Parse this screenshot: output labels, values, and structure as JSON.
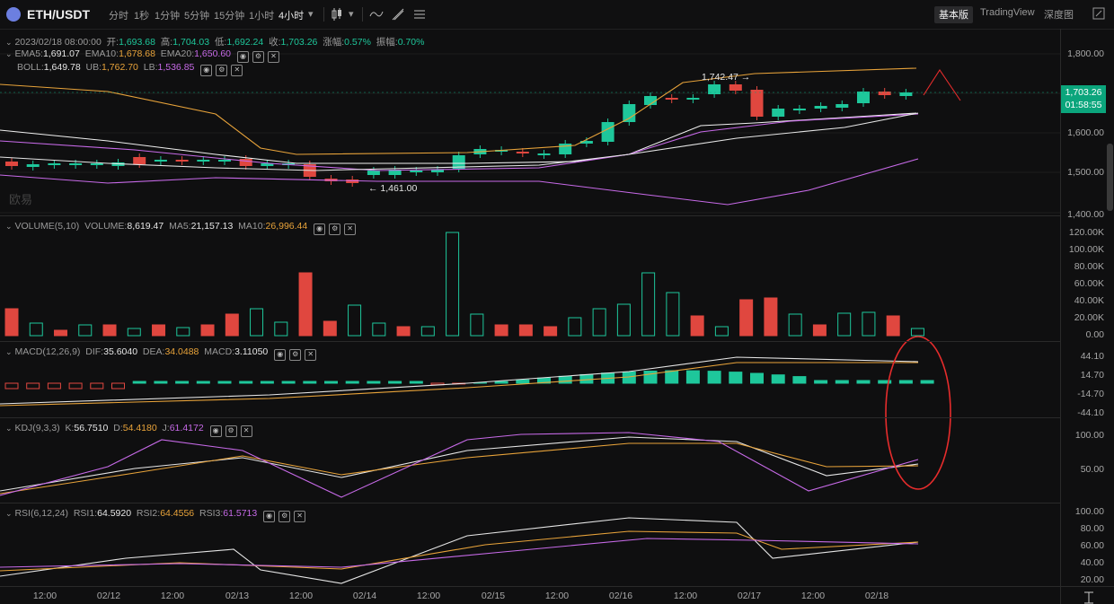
{
  "toolbar": {
    "symbol": "ETH/USDT",
    "intervals": [
      "分时",
      "1秒",
      "1分钟",
      "5分钟",
      "15分钟",
      "1小时",
      "4小时"
    ],
    "active_interval": "4小时",
    "views": [
      "基本版",
      "TradingView",
      "深度图"
    ],
    "active_view": "基本版"
  },
  "ohlc": {
    "date": "2023/02/18 08:00:00",
    "open_label": "开:",
    "open": "1,693.68",
    "high_label": "高:",
    "high": "1,704.03",
    "low_label": "低:",
    "low": "1,692.24",
    "close_label": "收:",
    "close": "1,703.26",
    "chg_label": "涨幅:",
    "chg": "0.57%",
    "amp_label": "振幅:",
    "amp": "0.70%"
  },
  "ema": {
    "ema5_label": "EMA5:",
    "ema5": "1,691.07",
    "ema10_label": "EMA10:",
    "ema10": "1,678.68",
    "ema20_label": "EMA20:",
    "ema20": "1,650.60"
  },
  "boll": {
    "label": "BOLL:",
    "value": "1,649.78",
    "ub_label": "UB:",
    "ub": "1,762.70",
    "lb_label": "LB:",
    "lb": "1,536.85"
  },
  "volume": {
    "label": "VOLUME(5,10)",
    "vol_label": "VOLUME:",
    "vol": "8,619.47",
    "ma5_label": "MA5:",
    "ma5": "21,157.13",
    "ma10_label": "MA10:",
    "ma10": "26,996.44"
  },
  "macd": {
    "label": "MACD(12,26,9)",
    "dif_label": "DIF:",
    "dif": "35.6040",
    "dea_label": "DEA:",
    "dea": "34.0488",
    "macd_label": "MACD:",
    "macd": "3.11050"
  },
  "kdj": {
    "label": "KDJ(9,3,3)",
    "k_label": "K:",
    "k": "56.7510",
    "d_label": "D:",
    "d": "54.4180",
    "j_label": "J:",
    "j": "61.4172"
  },
  "rsi": {
    "label": "RSI(6,12,24)",
    "r1_label": "RSI1:",
    "r1": "64.5920",
    "r2_label": "RSI2:",
    "r2": "64.4556",
    "r3_label": "RSI3:",
    "r3": "61.5713"
  },
  "price_tag": {
    "price": "1,703.26",
    "countdown": "01:58:55"
  },
  "annotations": {
    "high": "1,742.47",
    "low": "1,461.00"
  },
  "watermark": "欧易",
  "axes": {
    "price": [
      "1,800.00",
      "1,700.00",
      "1,600.00",
      "1,500.00",
      "1,400.00"
    ],
    "volume": [
      "120.00K",
      "100.00K",
      "80.00K",
      "60.00K",
      "40.00K",
      "20.00K",
      "0.00"
    ],
    "macd": [
      "44.10",
      "14.70",
      "-14.70",
      "-44.10"
    ],
    "kdj": [
      "100.00",
      "50.00"
    ],
    "rsi": [
      "100.00",
      "80.00",
      "60.00",
      "40.00",
      "20.00"
    ],
    "time": [
      "12:00",
      "02/12",
      "12:00",
      "02/13",
      "12:00",
      "02/14",
      "12:00",
      "02/15",
      "12:00",
      "02/16",
      "12:00",
      "02/17",
      "12:00",
      "02/18"
    ]
  },
  "colors": {
    "up": "#1ec79b",
    "down": "#e0473f",
    "ema5": "#f0f0f0",
    "ema10": "#e8a33a",
    "ema20": "#c76ae8",
    "annotation": "#e62c2c"
  }
}
